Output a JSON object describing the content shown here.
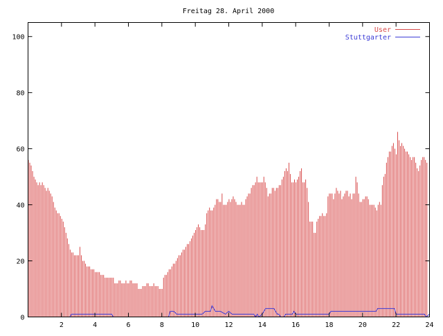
{
  "chart_data": {
    "type": "bar",
    "title": "Freitag 28. April 2000",
    "xlabel": "",
    "ylabel": "",
    "xlim": [
      0,
      24
    ],
    "ylim": [
      0,
      105
    ],
    "x_ticks": [
      2,
      4,
      6,
      8,
      10,
      12,
      14,
      16,
      18,
      20,
      22,
      24
    ],
    "y_ticks": [
      0,
      20,
      40,
      60,
      80,
      100
    ],
    "grid": false,
    "legend_position": "top-right",
    "interval_hours": 0.0833,
    "series": [
      {
        "name": "User",
        "style": "impulses",
        "color": "#d84a4a",
        "values": [
          56,
          55,
          54,
          52,
          50,
          49,
          48,
          47,
          48,
          47,
          48,
          47,
          46,
          45,
          46,
          45,
          44,
          43,
          41,
          39,
          38,
          37,
          37,
          36,
          35,
          34,
          32,
          30,
          28,
          26,
          24,
          23,
          23,
          22,
          22,
          22,
          22,
          25,
          22,
          20,
          20,
          19,
          18,
          18,
          18,
          17,
          17,
          17,
          16,
          16,
          16,
          16,
          15,
          15,
          15,
          14,
          14,
          14,
          14,
          14,
          14,
          14,
          12,
          12,
          12,
          13,
          13,
          12,
          12,
          12,
          13,
          12,
          12,
          13,
          13,
          12,
          12,
          12,
          12,
          10,
          10,
          10,
          11,
          11,
          11,
          12,
          12,
          11,
          11,
          11,
          12,
          11,
          11,
          11,
          10,
          10,
          10,
          14,
          15,
          15,
          16,
          17,
          17,
          18,
          19,
          19,
          20,
          21,
          22,
          22,
          23,
          24,
          24,
          25,
          26,
          26,
          27,
          28,
          29,
          30,
          31,
          32,
          33,
          32,
          31,
          31,
          31,
          33,
          37,
          38,
          39,
          38,
          38,
          39,
          40,
          42,
          42,
          41,
          41,
          44,
          40,
          40,
          40,
          41,
          42,
          41,
          42,
          43,
          42,
          41,
          40,
          40,
          40,
          41,
          40,
          40,
          42,
          43,
          44,
          44,
          46,
          47,
          47,
          48,
          50,
          48,
          48,
          48,
          48,
          50,
          48,
          46,
          43,
          44,
          44,
          46,
          46,
          45,
          46,
          46,
          47,
          47,
          49,
          50,
          52,
          53,
          52,
          55,
          51,
          48,
          48,
          49,
          48,
          49,
          50,
          52,
          53,
          48,
          48,
          49,
          46,
          41,
          34,
          34,
          34,
          30,
          30,
          34,
          35,
          36,
          36,
          37,
          36,
          36,
          37,
          43,
          44,
          44,
          44,
          42,
          44,
          46,
          45,
          44,
          45,
          42,
          43,
          44,
          45,
          45,
          43,
          44,
          42,
          44,
          44,
          50,
          48,
          44,
          41,
          41,
          42,
          42,
          43,
          43,
          42,
          40,
          40,
          40,
          40,
          39,
          38,
          40,
          41,
          40,
          47,
          50,
          51,
          55,
          57,
          59,
          59,
          61,
          62,
          60,
          58,
          66,
          63,
          61,
          62,
          61,
          60,
          59,
          59,
          58,
          57,
          56,
          57,
          57,
          55,
          53,
          52,
          54,
          56,
          57,
          57,
          56,
          55
        ]
      },
      {
        "name": "Stuttgarter",
        "style": "line",
        "color": "#3b3bd6",
        "x": [
          0,
          2.5,
          2.6,
          2.7,
          5.0,
          5.1,
          8.4,
          8.5,
          8.7,
          8.9,
          10.4,
          10.6,
          10.9,
          11.0,
          11.2,
          11.5,
          11.8,
          12.0,
          12.2,
          13.5,
          13.6,
          13.7,
          13.8,
          14.0,
          14.2,
          14.7,
          14.9,
          15.0,
          15.1,
          15.3,
          15.4,
          15.8,
          15.9,
          16.0,
          18.0,
          18.1,
          20.8,
          20.9,
          21.9,
          22.0,
          23.7,
          23.8,
          24.0
        ],
        "y": [
          0,
          0,
          1,
          1,
          1,
          0,
          0,
          2,
          2,
          1,
          1,
          2,
          2,
          4,
          2,
          2,
          1,
          2,
          1,
          1,
          0,
          1,
          0,
          1,
          3,
          3,
          1,
          1,
          0,
          0,
          1,
          1,
          2,
          1,
          1,
          2,
          2,
          3,
          3,
          1,
          1,
          0,
          1
        ]
      }
    ]
  }
}
